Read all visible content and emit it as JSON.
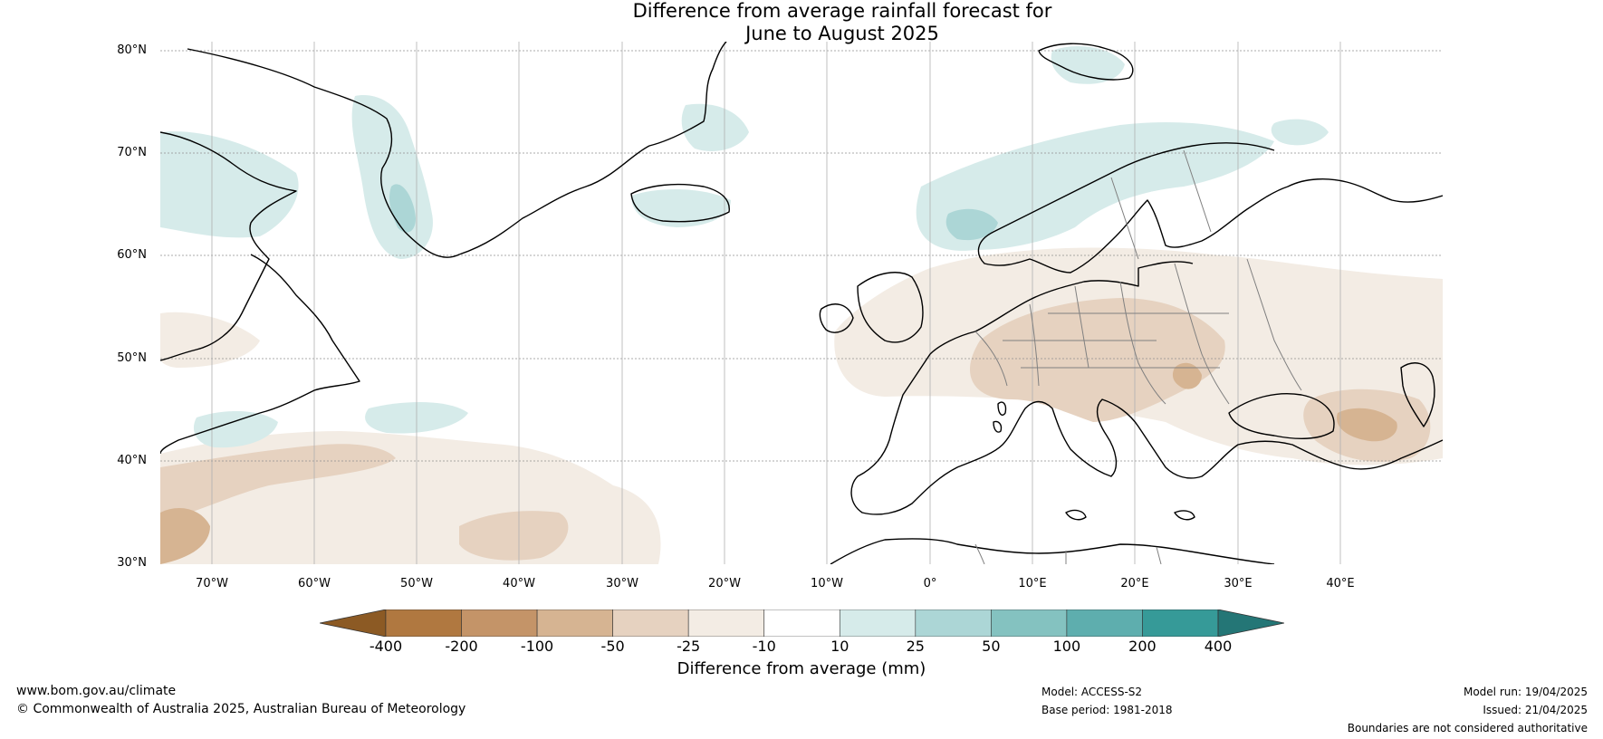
{
  "title": {
    "line1": "Difference from average rainfall forecast for",
    "line2": "June to August 2025"
  },
  "map": {
    "lon_range": [
      -75,
      50
    ],
    "lat_range": [
      30,
      81
    ],
    "lat_ticks": [
      "80°N",
      "70°N",
      "60°N",
      "50°N",
      "40°N",
      "30°N"
    ],
    "lon_ticks": [
      "70°W",
      "60°W",
      "50°W",
      "40°W",
      "30°W",
      "20°W",
      "10°W",
      "0°",
      "10°E",
      "20°E",
      "30°E",
      "40°E"
    ],
    "grid": true,
    "colors": {
      "coastline": "#000000",
      "border": "#808080",
      "grid": "#808080"
    }
  },
  "colorbar": {
    "label": "Difference from average (mm)",
    "ticks": [
      "-400",
      "-200",
      "-100",
      "-50",
      "-25",
      "-10",
      "10",
      "25",
      "50",
      "100",
      "200",
      "400"
    ],
    "colors": [
      "#8c5a24",
      "#b07840",
      "#c49468",
      "#d6b492",
      "#e6d2c0",
      "#f3ece4",
      "#ffffff",
      "#d6ebea",
      "#acd6d6",
      "#84c2c0",
      "#5eaeae",
      "#369a98",
      "#247676"
    ]
  },
  "footer": {
    "website": "www.bom.gov.au/climate",
    "copyright": "© Commonwealth of Australia 2025, Australian Bureau of Meteorology",
    "model": "Model: ACCESS-S2",
    "base_period": "Base period: 1981-2018",
    "model_run": "Model run: 19/04/2025",
    "issued": "Issued: 21/04/2025",
    "disclaimer": "Boundaries are not considered authoritative"
  }
}
